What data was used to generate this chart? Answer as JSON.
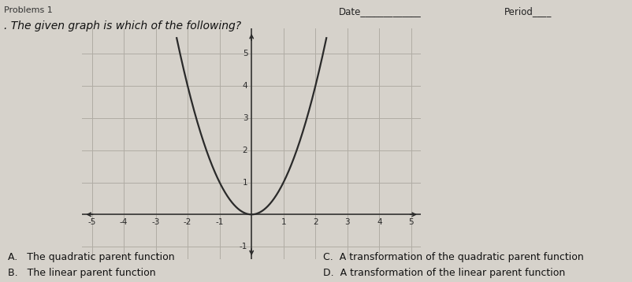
{
  "xlim": [
    -5.3,
    5.3
  ],
  "ylim": [
    -1.4,
    5.8
  ],
  "xtick_vals": [
    -5,
    -4,
    -3,
    -2,
    -1,
    1,
    2,
    3,
    4,
    5
  ],
  "ytick_vals": [
    1,
    2,
    3,
    4,
    5
  ],
  "ytick_neg": [
    -1
  ],
  "curve_color": "#2a2a2a",
  "grid_color": "#b0aca4",
  "axis_color": "#2a2a2a",
  "background_color": "#d6d2cb",
  "header": "Date_____________   Period____",
  "question": ". The given graph is which of the following?",
  "opt_A": "A.   The quadratic parent function",
  "opt_B": "B.   The linear parent function",
  "opt_C": "C.  A transformation of the quadratic parent function",
  "opt_D": "D.  A transformation of the linear parent function"
}
